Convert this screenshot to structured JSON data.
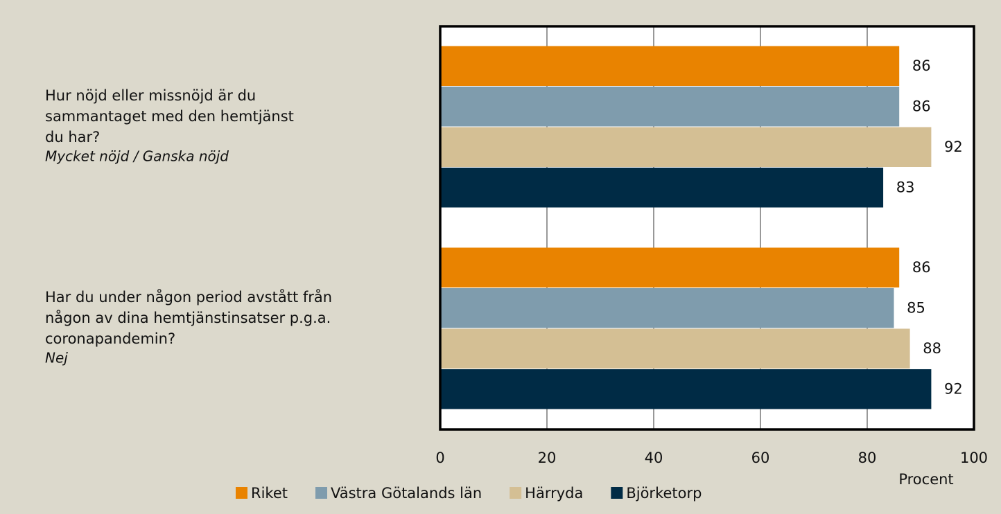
{
  "chart_data": {
    "type": "hbar",
    "categories": [
      [
        "Hur nöjd eller missnöjd är du",
        "sammantaget med den hemtjänst",
        "du har?"
      ],
      [
        "Har du under någon period avstått från",
        "någon av dina hemtjänstinsatser p.g.a.",
        "coronapandemin?"
      ]
    ],
    "category_notes": [
      "Mycket nöjd / Ganska nöjd",
      "Nej"
    ],
    "series": [
      {
        "name": "Riket",
        "color": "#e98300",
        "values": [
          86,
          86
        ]
      },
      {
        "name": "Västra Götalands län",
        "color": "#7f9cad",
        "values": [
          86,
          85
        ]
      },
      {
        "name": "Härryda",
        "color": "#d4bf94",
        "values": [
          92,
          88
        ]
      },
      {
        "name": "Björketorp",
        "color": "#002b45",
        "values": [
          83,
          92
        ]
      }
    ],
    "x_label": "Procent",
    "xlim": [
      0,
      100
    ],
    "xticks": [
      0,
      20,
      40,
      60,
      80,
      100
    ],
    "grid": true,
    "legend": "bottom"
  }
}
